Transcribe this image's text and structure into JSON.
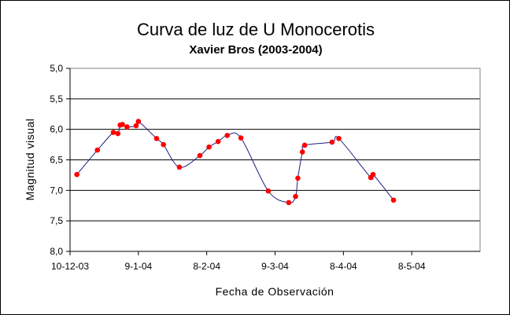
{
  "chart_data": {
    "type": "scatter",
    "title": "Curva de luz de U Monocerotis",
    "subtitle": "Xavier Bros  (2003-2004)",
    "xlabel": "Fecha de Observación",
    "ylabel": "Magnitud visual",
    "x_axis": {
      "kind": "date",
      "range": [
        "2003-12-10",
        "2004-06-07"
      ],
      "ticks": [
        "2003-12-10",
        "2004-01-09",
        "2004-02-08",
        "2004-03-09",
        "2004-04-08",
        "2004-05-08"
      ],
      "tick_labels": [
        "10-12-03",
        "9-1-04",
        "8-2-04",
        "9-3-04",
        "8-4-04",
        "8-5-04"
      ]
    },
    "y_axis": {
      "range": [
        5.0,
        8.0
      ],
      "inverted": true,
      "ticks": [
        5.0,
        5.5,
        6.0,
        6.5,
        7.0,
        7.5,
        8.0
      ],
      "tick_labels": [
        "5,0",
        "5,5",
        "6,0",
        "6,5",
        "7,0",
        "7,5",
        "8,0"
      ]
    },
    "grid": "horizontal",
    "marker_color": "#ff0000",
    "line_color": "#1a237e",
    "series": [
      {
        "smoothed_line": true,
        "points": [
          {
            "x": "2003-12-13",
            "y": 6.74
          },
          {
            "x": "2003-12-22",
            "y": 6.34
          },
          {
            "x": "2003-12-29",
            "y": 6.05
          },
          {
            "x": "2003-12-31",
            "y": 6.07
          },
          {
            "x": "2004-01-01",
            "y": 5.93
          },
          {
            "x": "2004-01-02",
            "y": 5.92
          },
          {
            "x": "2004-01-04",
            "y": 5.96
          },
          {
            "x": "2004-01-08",
            "y": 5.94
          },
          {
            "x": "2004-01-09",
            "y": 5.87
          },
          {
            "x": "2004-01-17",
            "y": 6.15
          },
          {
            "x": "2004-01-20",
            "y": 6.25
          },
          {
            "x": "2004-01-27",
            "y": 6.62
          },
          {
            "x": "2004-02-05",
            "y": 6.43
          },
          {
            "x": "2004-02-09",
            "y": 6.29
          },
          {
            "x": "2004-02-13",
            "y": 6.2
          },
          {
            "x": "2004-02-17",
            "y": 6.1
          },
          {
            "x": "2004-02-23",
            "y": 6.14
          },
          {
            "x": "2004-03-06",
            "y": 7.01
          },
          {
            "x": "2004-03-15",
            "y": 7.2
          },
          {
            "x": "2004-03-18",
            "y": 7.1
          },
          {
            "x": "2004-03-19",
            "y": 6.8
          },
          {
            "x": "2004-03-21",
            "y": 6.37
          },
          {
            "x": "2004-03-22",
            "y": 6.26
          },
          {
            "x": "2004-04-03",
            "y": 6.21
          },
          {
            "x": "2004-04-06",
            "y": 6.15
          },
          {
            "x": "2004-04-20",
            "y": 6.79
          },
          {
            "x": "2004-04-21",
            "y": 6.74
          },
          {
            "x": "2004-04-30",
            "y": 7.16
          }
        ]
      }
    ]
  }
}
